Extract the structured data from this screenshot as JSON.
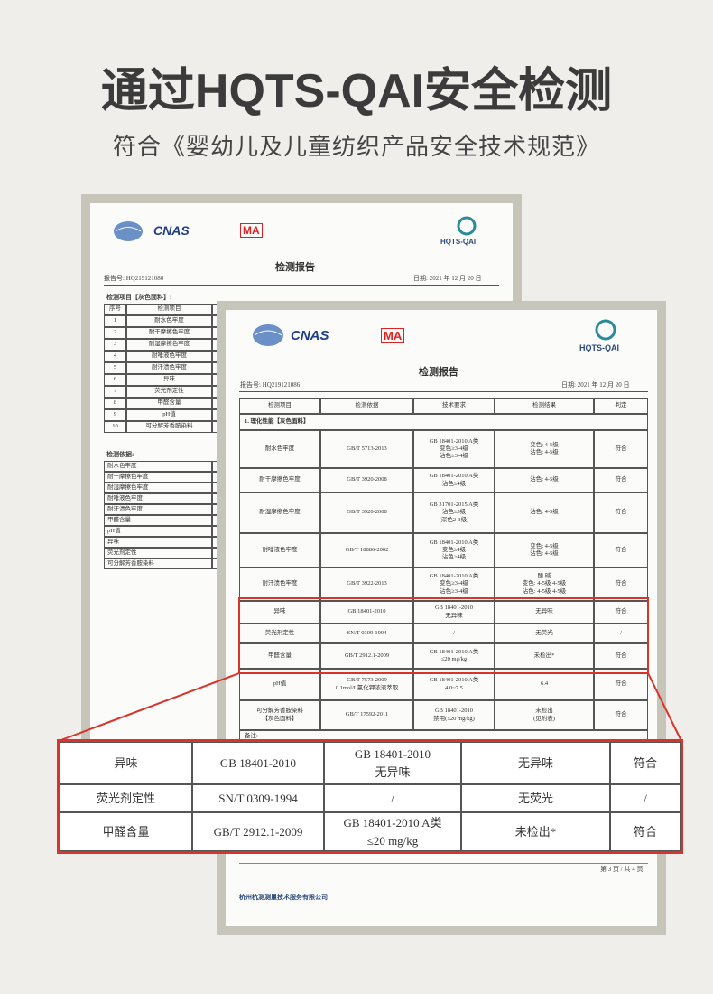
{
  "header": {
    "title": "通过HQTS-QAI安全检测",
    "subtitle": "符合《婴幼儿及儿童纺织产品安全技术规范》"
  },
  "back_report": {
    "logos": {
      "cnas": "CNAS",
      "ma": "MA",
      "hqts": "HQTS-QAI"
    },
    "title": "检测报告",
    "report_no": "报告号: HQ219121086",
    "date": "日期: 2021 年 12 月 20 日",
    "section": "检测项目【灰色面料】:",
    "columns": [
      "序号",
      "检测项目"
    ],
    "rows": [
      [
        "1",
        "耐水色牢度"
      ],
      [
        "2",
        "耐干摩擦色牢度"
      ],
      [
        "3",
        "耐湿摩擦色牢度"
      ],
      [
        "4",
        "耐唾液色牢度"
      ],
      [
        "5",
        "耐汗渍色牢度"
      ],
      [
        "6",
        "异味"
      ],
      [
        "7",
        "荧光剂定性"
      ],
      [
        "8",
        "甲醛含量"
      ],
      [
        "9",
        "pH值"
      ],
      [
        "10",
        "可分解芳香胺染料"
      ]
    ],
    "basis_title": "检测依据:",
    "basis": [
      "耐水色牢度",
      "耐干摩擦色牢度",
      "耐湿摩擦色牢度",
      "耐唾液色牢度",
      "耐汗渍色牢度",
      "甲醛含量",
      "pH值",
      "异味",
      "荧光剂定性",
      "可分解芳香胺染料"
    ]
  },
  "front_report": {
    "logos": {
      "cnas": "CNAS",
      "ma": "MA",
      "hqts": "HQTS-QAI"
    },
    "title": "检测报告",
    "report_no": "报告号: HQ219121086",
    "date": "日期: 2021 年 12 月 20 日",
    "table": {
      "columns": [
        "检测项目",
        "检测依据",
        "技术要求",
        "检测结果",
        "判定"
      ],
      "section": "1.  理化性能【灰色面料】",
      "rows": [
        [
          "耐水色牢度",
          "GB/T 5713-2013",
          "GB 18401-2010 A类\n变色≥3-4级\n沾色≥3-4级",
          "变色: 4-5级\n沾色: 4-5级",
          "符合"
        ],
        [
          "耐干摩擦色牢度",
          "GB/T 3920-2008",
          "GB 18401-2010 A类\n沾色≥4级",
          "沾色: 4-5级",
          "符合"
        ],
        [
          "耐湿摩擦色牢度",
          "GB/T 3920-2008",
          "GB 31701-2015 A类\n沾色≥3级\n(深色2-3级)",
          "沾色: 4-5级",
          "符合"
        ],
        [
          "耐唾液色牢度",
          "GB/T 18886-2002",
          "GB 18401-2010 A类\n变色≥4级\n沾色≥4级",
          "变色: 4-5级\n沾色: 4-5级",
          "符合"
        ],
        [
          "耐汗渍色牢度",
          "GB/T 3922-2013",
          "GB 18401-2010 A类\n变色≥3-4级\n沾色≥3-4级",
          "酸        碱\n变色: 4-5级  4-5级\n沾色: 4-5级  4-5级",
          "符合"
        ],
        [
          "异味",
          "GB 18401-2010",
          "GB 18401-2010\n无异味",
          "无异味",
          "符合"
        ],
        [
          "荧光剂定性",
          "SN/T 0309-1994",
          "/",
          "无荧光",
          "/"
        ],
        [
          "甲醛含量",
          "GB/T 2912.1-2009",
          "GB 18401-2010 A类\n≤20 mg/kg",
          "未检出*",
          "符合"
        ],
        [
          "pH值",
          "GB/T 7573-2009\n0.1mol/L氯化钾浓液萃取",
          "GB 18401-2010 A类\n4.0~7.5",
          "6.4",
          "符合"
        ],
        [
          "可分解芳香胺染料\n【灰色面料】",
          "GB/T 17592-2011",
          "GB 18401-2010\n禁用(≤20 mg/kg)",
          "未检出\n(见附表)",
          "符合"
        ]
      ],
      "remark": "备注:"
    },
    "page": "第 3 页 / 共 4 页",
    "company": "杭州杭测测量技术服务有限公司"
  },
  "zoom": {
    "rows": [
      [
        "异味",
        "GB 18401-2010",
        "GB 18401-2010\n无异味",
        "无异味",
        "符合"
      ],
      [
        "荧光剂定性",
        "SN/T 0309-1994",
        "/",
        "无荧光",
        "/"
      ],
      [
        "甲醛含量",
        "GB/T 2912.1-2009",
        "GB 18401-2010 A类\n≤20 mg/kg",
        "未检出*",
        "符合"
      ]
    ]
  }
}
